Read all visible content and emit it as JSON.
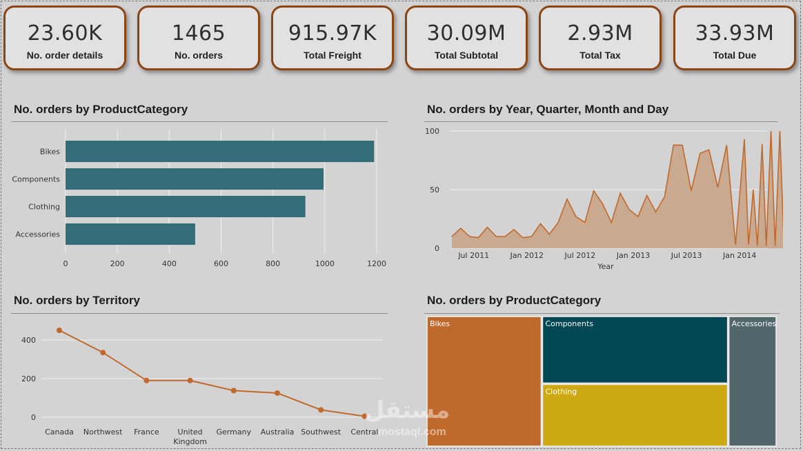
{
  "kpis": [
    {
      "value": "23.60K",
      "label": "No. order details"
    },
    {
      "value": "1465",
      "label": "No. orders"
    },
    {
      "value": "915.97K",
      "label": "Total Freight"
    },
    {
      "value": "30.09M",
      "label": "Total Subtotal"
    },
    {
      "value": "2.93M",
      "label": "Total Tax"
    },
    {
      "value": "33.93M",
      "label": "Total Due"
    }
  ],
  "panels": {
    "bar_title": "No. orders by ProductCategory",
    "area_title": "No. orders by Year, Quarter, Month and Day",
    "line_title": "No. orders by Territory",
    "treemap_title": "No. orders by ProductCategory"
  },
  "watermark": {
    "text": "مستقل",
    "sub": "mostaql.com"
  },
  "colors": {
    "bar": "#336e78",
    "area_stroke": "#c0692c",
    "area_fill": "#c9a48a",
    "line": "#c0692c",
    "kpi_border": "#8b4513",
    "treemap_bikes": "#c0692c",
    "treemap_components": "#024754",
    "treemap_clothing": "#cda914",
    "treemap_accessories": "#52676b"
  },
  "chart_data": [
    {
      "type": "bar",
      "orientation": "horizontal",
      "title": "No. orders by ProductCategory",
      "categories": [
        "Bikes",
        "Components",
        "Clothing",
        "Accessories"
      ],
      "values": [
        1190,
        995,
        925,
        500
      ],
      "xticks": [
        "0",
        "200",
        "400",
        "600",
        "800",
        "1000",
        "1200"
      ],
      "xlim": [
        0,
        1200
      ],
      "grid": true
    },
    {
      "type": "area",
      "title": "No. orders by Year, Quarter, Month and Day",
      "xlabel": "Year",
      "xticks": [
        "Jul 2011",
        "Jan 2012",
        "Jul 2012",
        "Jan 2013",
        "Jul 2013",
        "Jan 2014"
      ],
      "yticks": [
        "0",
        "50",
        "100"
      ],
      "ylim": [
        0,
        100
      ],
      "x": [
        "2011-05",
        "2011-06",
        "2011-07",
        "2011-08",
        "2011-09",
        "2011-10",
        "2011-11",
        "2011-12",
        "2012-01",
        "2012-02",
        "2012-03",
        "2012-04",
        "2012-05",
        "2012-06",
        "2012-07",
        "2012-08",
        "2012-09",
        "2012-10",
        "2012-11",
        "2012-12",
        "2013-01",
        "2013-02",
        "2013-03",
        "2013-04",
        "2013-05",
        "2013-06",
        "2013-07",
        "2013-08",
        "2013-09",
        "2013-10",
        "2013-11",
        "2013-12",
        "2014-01",
        "2014-02",
        "2014-02",
        "2014-03",
        "2014-03",
        "2014-04",
        "2014-04",
        "2014-05",
        "2014-05",
        "2014-06",
        "2014-06"
      ],
      "values": [
        10,
        17,
        10,
        9,
        18,
        10,
        10,
        16,
        9,
        10,
        21,
        12,
        22,
        42,
        27,
        22,
        49,
        38,
        22,
        47,
        33,
        27,
        45,
        31,
        44,
        88,
        88,
        49,
        81,
        84,
        52,
        88,
        3,
        93,
        3,
        50,
        2,
        89,
        2,
        100,
        2,
        100,
        2
      ],
      "grid": true
    },
    {
      "type": "line",
      "title": "No. orders by Territory",
      "categories": [
        "Canada",
        "Northwest",
        "France",
        "United Kingdom",
        "Germany",
        "Australia",
        "Southwest",
        "Central"
      ],
      "values": [
        450,
        335,
        190,
        190,
        138,
        125,
        38,
        5
      ],
      "yticks": [
        "0",
        "200",
        "400"
      ],
      "ylim": [
        0,
        500
      ],
      "grid": true
    },
    {
      "type": "treemap",
      "title": "No. orders by ProductCategory",
      "categories": [
        "Bikes",
        "Components",
        "Clothing",
        "Accessories"
      ],
      "values": [
        1190,
        995,
        925,
        500
      ]
    }
  ]
}
